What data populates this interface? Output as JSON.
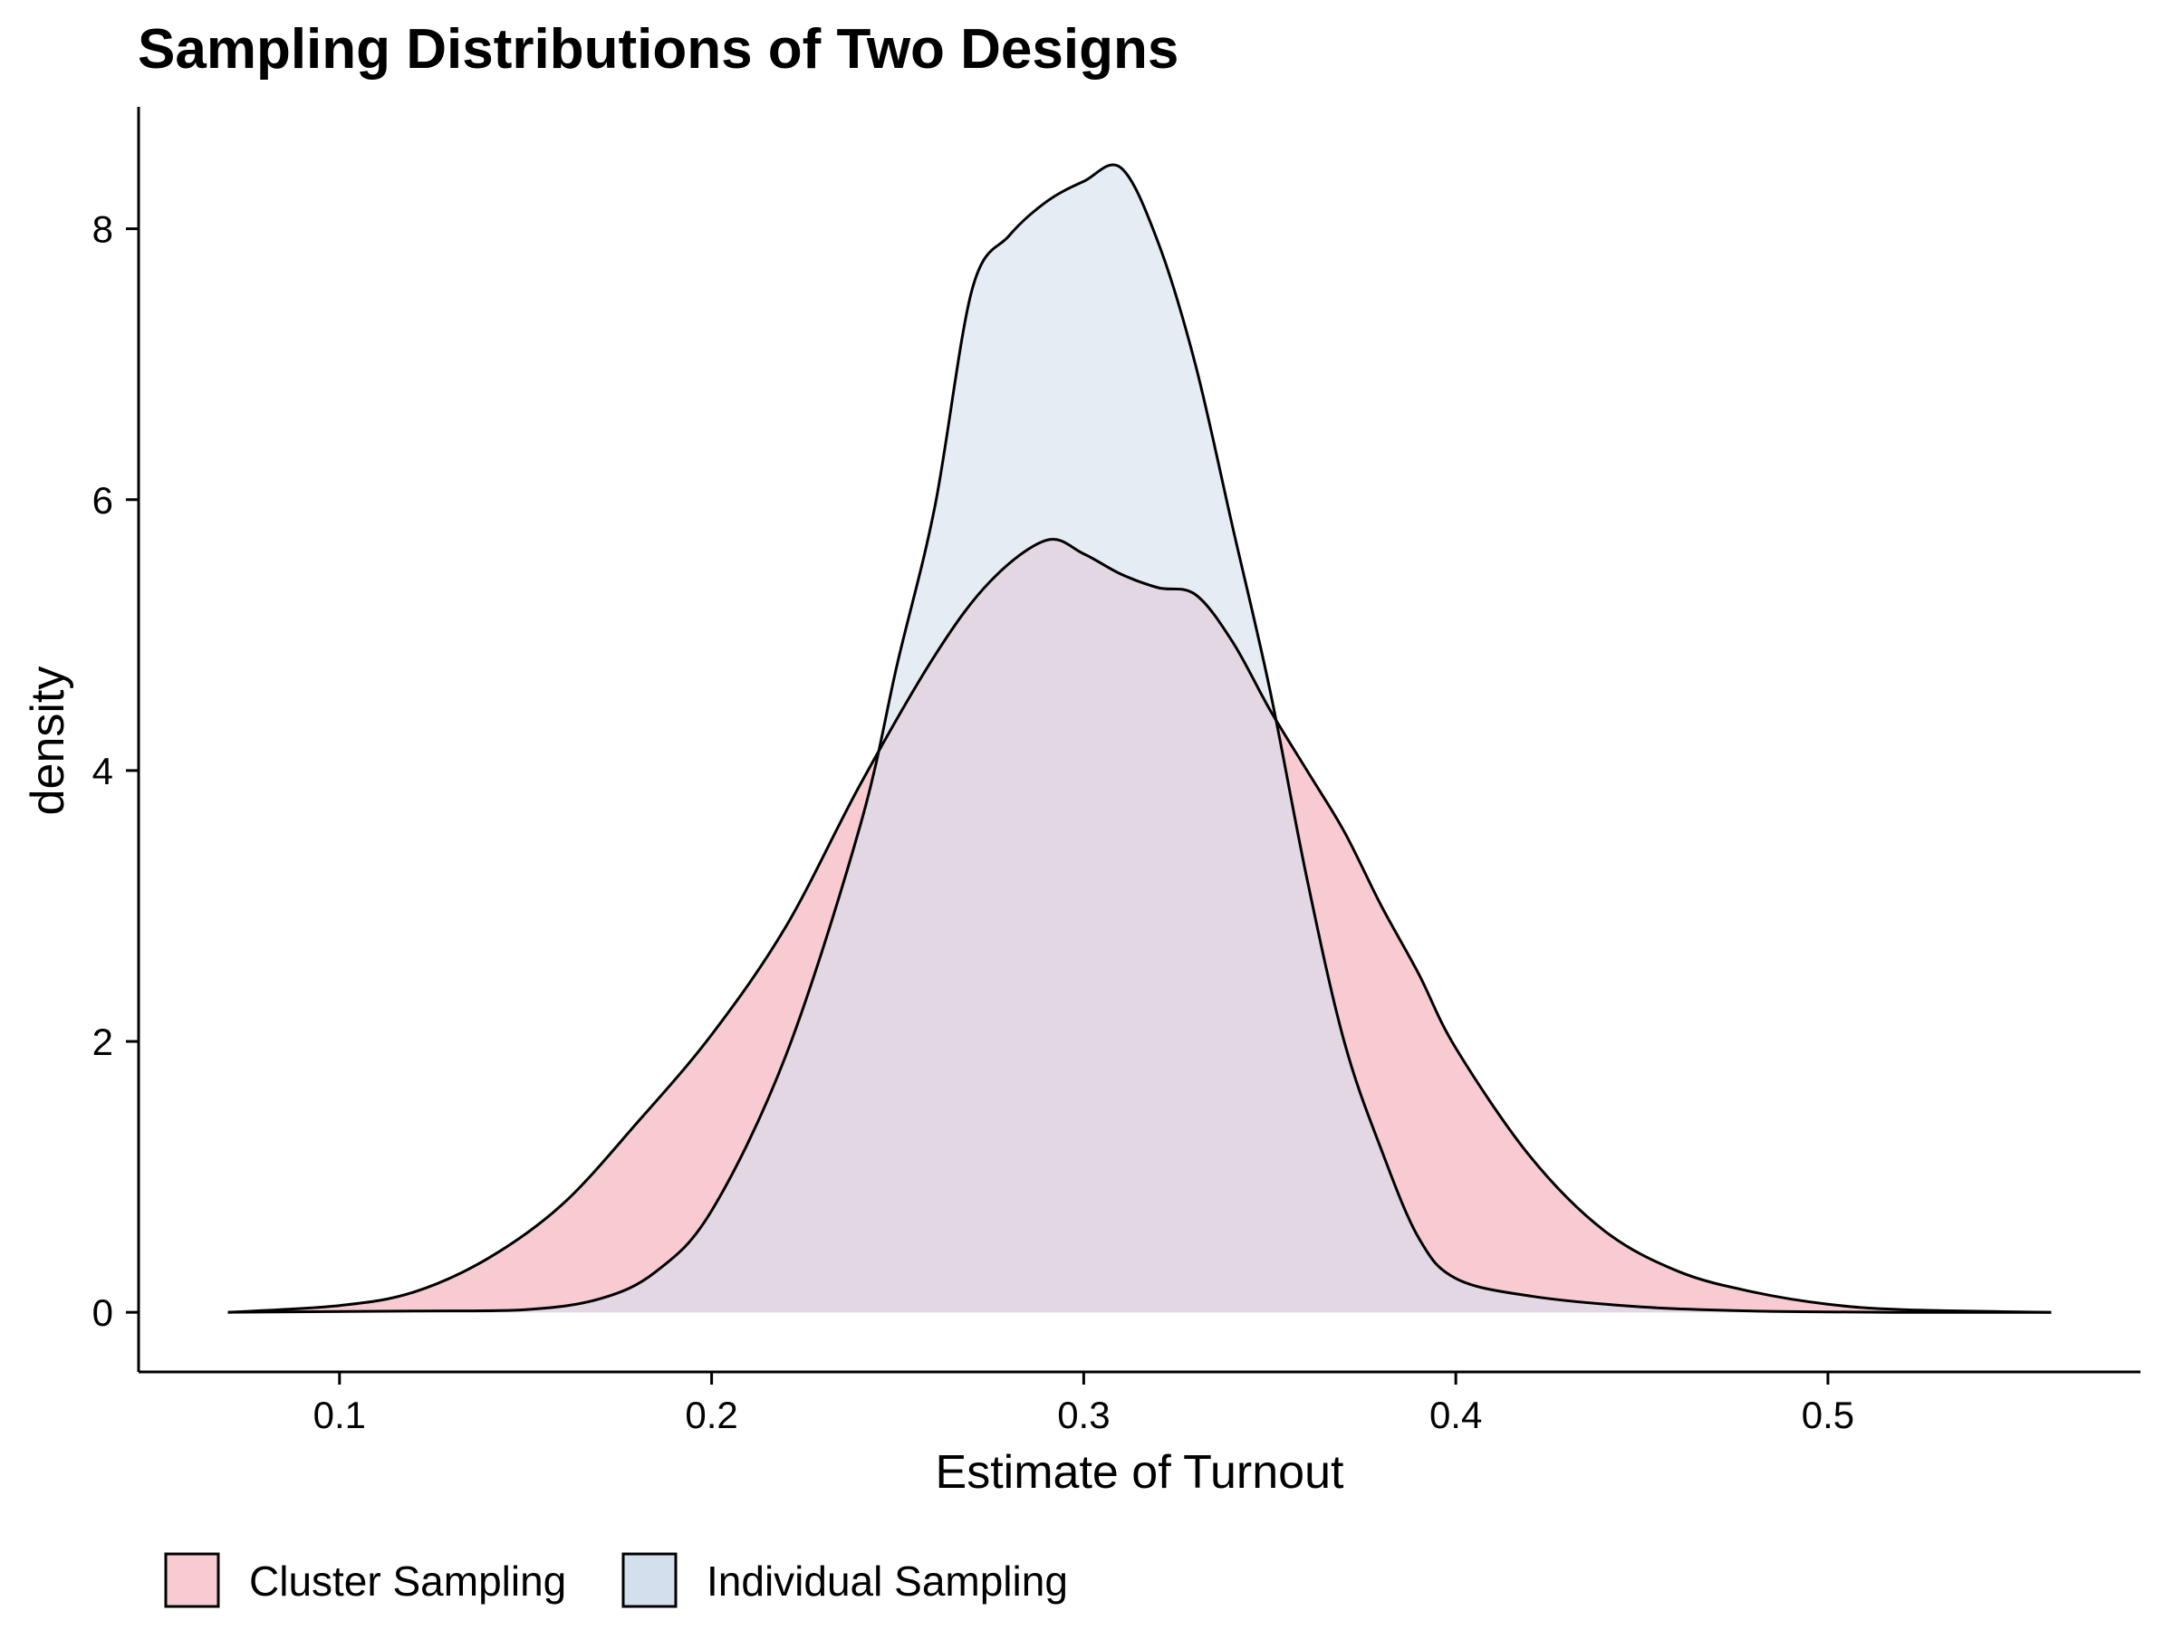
{
  "chart_data": {
    "type": "area",
    "title": "Sampling Distributions of Two Designs",
    "xlabel": "Estimate of Turnout",
    "ylabel": "density",
    "xlim": [
      0.046,
      0.584
    ],
    "ylim": [
      -0.44,
      8.9
    ],
    "xticks": [
      0.1,
      0.2,
      0.3,
      0.4,
      0.5
    ],
    "yticks": [
      0,
      2,
      4,
      6,
      8
    ],
    "grid": false,
    "legend_position": "bottom-left",
    "series": [
      {
        "name": "Cluster Sampling",
        "color": "#F8CBD2",
        "x": [
          0.07,
          0.1,
          0.12,
          0.14,
          0.16,
          0.18,
          0.2,
          0.22,
          0.24,
          0.26,
          0.275,
          0.29,
          0.3,
          0.31,
          0.32,
          0.33,
          0.34,
          0.35,
          0.36,
          0.37,
          0.38,
          0.39,
          0.4,
          0.42,
          0.44,
          0.46,
          0.48,
          0.5,
          0.52,
          0.56
        ],
        "y": [
          0.0,
          0.05,
          0.15,
          0.4,
          0.8,
          1.4,
          2.05,
          2.85,
          3.9,
          4.85,
          5.4,
          5.7,
          5.6,
          5.45,
          5.35,
          5.3,
          4.95,
          4.45,
          4.0,
          3.55,
          3.0,
          2.5,
          1.95,
          1.15,
          0.6,
          0.3,
          0.15,
          0.06,
          0.02,
          0.0
        ]
      },
      {
        "name": "Individual Sampling",
        "color": "#D3DFED",
        "x": [
          0.07,
          0.12,
          0.15,
          0.17,
          0.185,
          0.2,
          0.22,
          0.24,
          0.25,
          0.26,
          0.27,
          0.28,
          0.29,
          0.3,
          0.31,
          0.32,
          0.33,
          0.34,
          0.35,
          0.36,
          0.37,
          0.38,
          0.39,
          0.4,
          0.42,
          0.45,
          0.48,
          0.52,
          0.56
        ],
        "y": [
          0.0,
          0.01,
          0.02,
          0.1,
          0.3,
          0.75,
          1.9,
          3.6,
          4.8,
          5.95,
          7.55,
          7.95,
          8.2,
          8.35,
          8.45,
          7.9,
          7.0,
          5.8,
          4.6,
          3.2,
          2.0,
          1.2,
          0.55,
          0.25,
          0.12,
          0.04,
          0.01,
          0.0,
          0.0
        ]
      }
    ]
  }
}
